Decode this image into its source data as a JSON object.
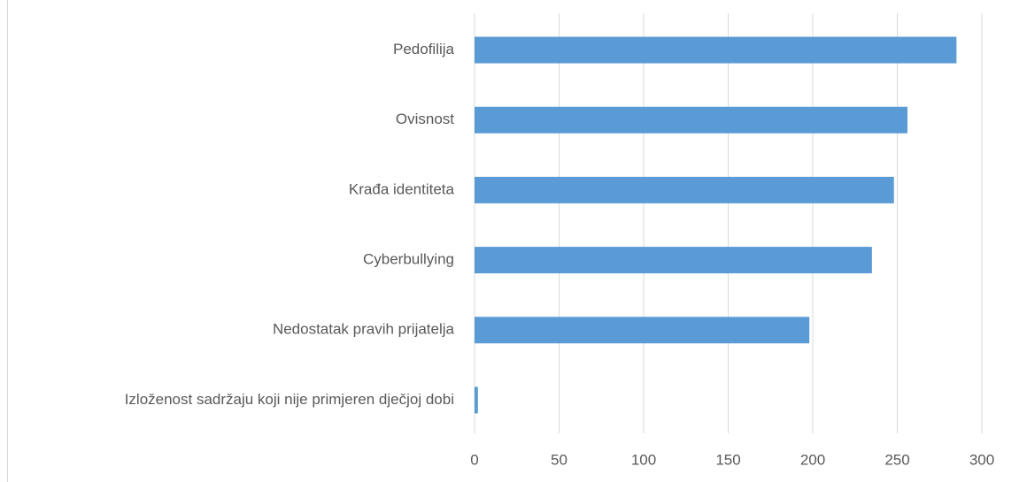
{
  "chart_data": {
    "type": "bar",
    "orientation": "horizontal",
    "categories": [
      "Pedofilija",
      "Ovisnost",
      "Krađa identiteta",
      "Cyberbullying",
      "Nedostatak pravih prijatelja",
      "Izloženost sadržaju koji nije primjeren dječjoj dobi"
    ],
    "values": [
      285,
      256,
      248,
      235,
      198,
      2
    ],
    "color": "#5b9bd5",
    "xlim": [
      0,
      300
    ],
    "xticks": [
      0,
      50,
      100,
      150,
      200,
      250,
      300
    ],
    "grid": true
  }
}
